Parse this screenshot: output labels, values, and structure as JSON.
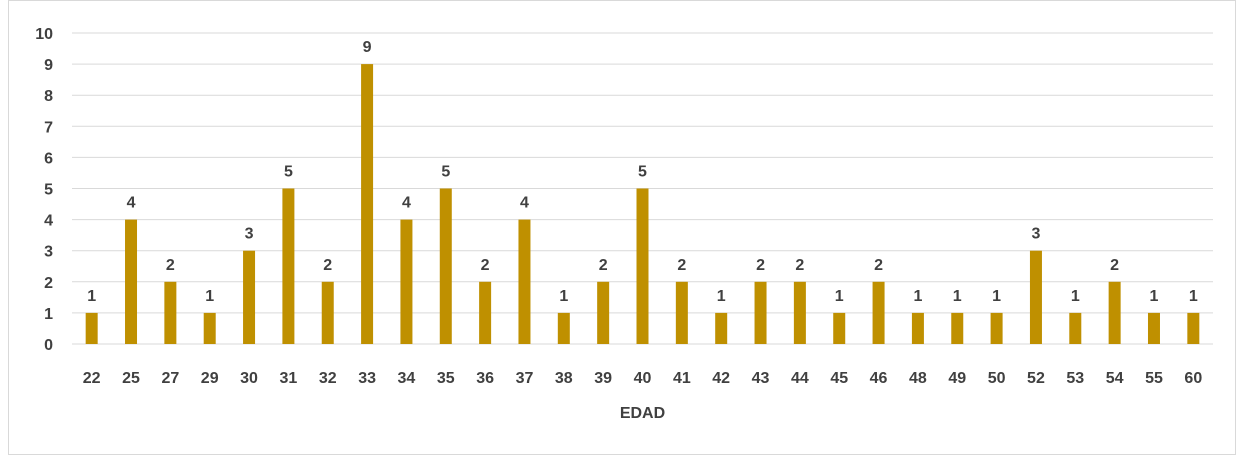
{
  "chart_data": {
    "type": "bar",
    "title": "",
    "xlabel": "EDAD",
    "ylabel": "",
    "ylim": [
      0,
      10
    ],
    "yticks": [
      0,
      1,
      2,
      3,
      4,
      5,
      6,
      7,
      8,
      9,
      10
    ],
    "grid": true,
    "legend": "none",
    "categories": [
      "22",
      "25",
      "27",
      "29",
      "30",
      "31",
      "32",
      "33",
      "34",
      "35",
      "36",
      "37",
      "38",
      "39",
      "40",
      "41",
      "42",
      "43",
      "44",
      "45",
      "46",
      "48",
      "49",
      "50",
      "52",
      "53",
      "54",
      "55",
      "60"
    ],
    "values": [
      1,
      4,
      2,
      1,
      3,
      5,
      2,
      9,
      4,
      5,
      2,
      4,
      1,
      2,
      5,
      2,
      1,
      2,
      2,
      1,
      2,
      1,
      1,
      1,
      3,
      1,
      2,
      1,
      1
    ],
    "colors": {
      "bar": "#BF9000",
      "grid": "#d9d9d9",
      "text": "#404040"
    }
  }
}
